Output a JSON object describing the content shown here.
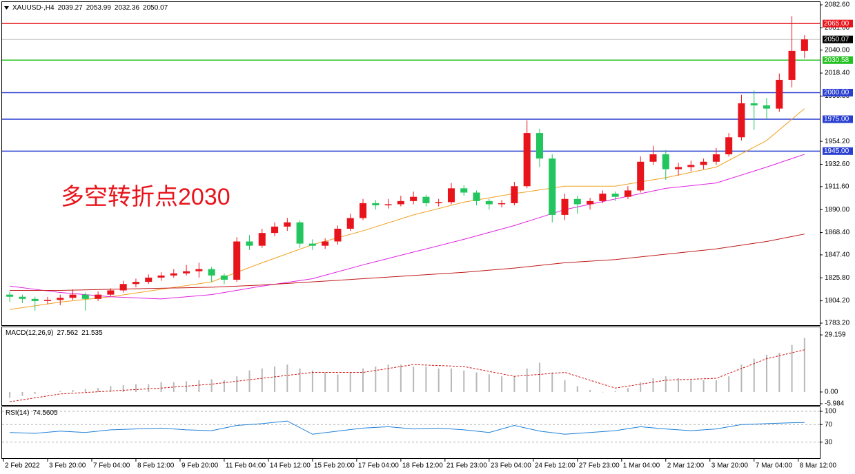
{
  "chart_data": [
    {
      "type": "candlestick",
      "title": "XAUUSD-,H4",
      "annotation": "多空转折点2030",
      "up_color": "#e8141c",
      "down_color": "#22c55e",
      "xlim": [
        0,
        64
      ],
      "ylim": [
        1783.2,
        2082.6
      ],
      "yticks": [
        {
          "value": 2082.6,
          "label": "2082.60"
        },
        {
          "value": 2061,
          "label": "2061.00"
        },
        {
          "value": 2040,
          "label": "2040.00"
        },
        {
          "value": 2018.4,
          "label": "2018.40"
        },
        {
          "value": 1996.8,
          "label": "1996.80"
        },
        {
          "value": 1954.2,
          "label": "1954.20"
        },
        {
          "value": 1932.6,
          "label": "1932.60"
        },
        {
          "value": 1911.6,
          "label": "1911.60"
        },
        {
          "value": 1890,
          "label": "1890.00"
        },
        {
          "value": 1868.4,
          "label": "1868.40"
        },
        {
          "value": 1847.4,
          "label": "1847.40"
        },
        {
          "value": 1825.8,
          "label": "1825.80"
        },
        {
          "value": 1804.2,
          "label": "1804.20"
        },
        {
          "value": 1783.2,
          "label": "1783.20"
        }
      ],
      "open": [
        1810,
        1808,
        1806,
        1804,
        1805,
        1807,
        1810,
        1806,
        1810,
        1814,
        1820,
        1822,
        1826,
        1828,
        1830,
        1832,
        1834,
        1828,
        1824,
        1860,
        1856,
        1868,
        1874,
        1878,
        1858,
        1856,
        1860,
        1872,
        1882,
        1896,
        1894,
        1895,
        1898,
        1902,
        1896,
        1897,
        1910,
        1906,
        1898,
        1895,
        1896,
        1912,
        1962,
        1938,
        1885,
        1900,
        1895,
        1898,
        1905,
        1902,
        1908,
        1935,
        1942,
        1928,
        1930,
        1932,
        1935,
        1942,
        1958,
        1990,
        1988,
        1985,
        2012,
        2039.27
      ],
      "high": [
        1813,
        1810,
        1808,
        1808,
        1810,
        1815,
        1812,
        1813,
        1816,
        1823,
        1825,
        1829,
        1831,
        1834,
        1838,
        1840,
        1836,
        1830,
        1864,
        1866,
        1872,
        1878,
        1882,
        1880,
        1862,
        1863,
        1875,
        1886,
        1900,
        1899,
        1900,
        1903,
        1907,
        1904,
        1900,
        1915,
        1913,
        1908,
        1900,
        1899,
        1916,
        1974,
        1966,
        1942,
        1905,
        1903,
        1901,
        1908,
        1907,
        1912,
        1940,
        1950,
        1946,
        1934,
        1936,
        1938,
        1948,
        1962,
        1998,
        2002,
        1995,
        2018,
        2072,
        2053.99
      ],
      "low": [
        1803,
        1802,
        1795,
        1801,
        1800,
        1805,
        1795,
        1804,
        1808,
        1812,
        1817,
        1820,
        1823,
        1826,
        1828,
        1826,
        1822,
        1820,
        1822,
        1852,
        1854,
        1865,
        1870,
        1854,
        1852,
        1853,
        1857,
        1870,
        1880,
        1890,
        1891,
        1893,
        1895,
        1893,
        1893,
        1895,
        1903,
        1894,
        1890,
        1892,
        1894,
        1910,
        1930,
        1878,
        1880,
        1886,
        1890,
        1896,
        1898,
        1900,
        1906,
        1932,
        1918,
        1922,
        1926,
        1928,
        1932,
        1940,
        1955,
        1965,
        1975,
        1982,
        2005,
        2032.36
      ],
      "close": [
        1808,
        1806,
        1804,
        1805,
        1807,
        1810,
        1806,
        1810,
        1814,
        1820,
        1822,
        1826,
        1828,
        1830,
        1832,
        1834,
        1828,
        1824,
        1860,
        1856,
        1868,
        1874,
        1878,
        1858,
        1856,
        1860,
        1872,
        1882,
        1896,
        1894,
        1895,
        1898,
        1902,
        1896,
        1897,
        1910,
        1906,
        1898,
        1895,
        1896,
        1912,
        1962,
        1938,
        1885,
        1900,
        1895,
        1898,
        1905,
        1902,
        1908,
        1935,
        1942,
        1928,
        1930,
        1932,
        1935,
        1942,
        1958,
        1990,
        1988,
        1985,
        2012,
        2039.27,
        2050.07
      ],
      "ma_lines": [
        {
          "color": "#f0a020",
          "x": [
            0,
            4,
            8,
            12,
            16,
            20,
            24,
            28,
            32,
            36,
            40,
            44,
            48,
            52,
            56,
            60,
            63
          ],
          "values": [
            1796,
            1803,
            1808,
            1815,
            1822,
            1840,
            1857,
            1870,
            1885,
            1897,
            1905,
            1912,
            1912,
            1920,
            1930,
            1955,
            1985
          ]
        },
        {
          "color": "#e020e0",
          "x": [
            0,
            4,
            8,
            12,
            16,
            20,
            24,
            28,
            32,
            36,
            40,
            44,
            48,
            52,
            56,
            60,
            63
          ],
          "values": [
            1818,
            1812,
            1808,
            1806,
            1810,
            1818,
            1825,
            1838,
            1850,
            1862,
            1875,
            1890,
            1900,
            1910,
            1915,
            1930,
            1942
          ]
        },
        {
          "color": "#c01818",
          "x": [
            0,
            4,
            8,
            12,
            16,
            20,
            24,
            28,
            32,
            36,
            40,
            44,
            48,
            52,
            56,
            60,
            63
          ],
          "values": [
            1814,
            1814,
            1815,
            1816,
            1817,
            1819,
            1822,
            1825,
            1828,
            1831,
            1835,
            1840,
            1843,
            1848,
            1853,
            1860,
            1867
          ]
        }
      ],
      "levels": [
        {
          "value": 2065,
          "label": "2065.00",
          "color": "#e8141c"
        },
        {
          "value": 2030.58,
          "label": "2030.58",
          "color": "#22c020"
        },
        {
          "value": 2000,
          "label": "2000.00",
          "color": "#2a3fd0"
        },
        {
          "value": 1975,
          "label": "1975.00",
          "color": "#2a3fd0"
        },
        {
          "value": 1945,
          "label": "1945.00",
          "color": "#2a3fd0"
        }
      ]
    },
    {
      "type": "macd",
      "title": "MACD(12,26,9)",
      "xlim": [
        0,
        64
      ],
      "ylim": [
        -6.7,
        31.3
      ],
      "yticks": [
        29.159,
        {
          "value": 0,
          "label": "0.00"
        },
        -5.984
      ],
      "histogram": {
        "color": "#b8b8b8",
        "values": [
          -3,
          -2,
          -1,
          0,
          0.5,
          1,
          1.5,
          2,
          3,
          3.5,
          4,
          4,
          5,
          5,
          5.5,
          6,
          6.5,
          6,
          8,
          11,
          12,
          13,
          14,
          12,
          11,
          10,
          9,
          10,
          12,
          13,
          14,
          14,
          13,
          13,
          12,
          12,
          11,
          10,
          9,
          8,
          8,
          12,
          15,
          10,
          6,
          3,
          1,
          0,
          0.5,
          2,
          5,
          7,
          8,
          7,
          6,
          6,
          6,
          8,
          14,
          17,
          19,
          20,
          24,
          27.562
        ]
      },
      "signal": {
        "color": "#d01010",
        "x": [
          0,
          4,
          8,
          12,
          16,
          20,
          24,
          28,
          32,
          36,
          40,
          44,
          48,
          52,
          56,
          60,
          63
        ],
        "values": [
          -5,
          -1,
          0.5,
          2,
          4,
          7,
          10,
          10,
          14,
          13,
          8,
          10,
          2,
          6,
          7,
          17,
          21.535
        ]
      }
    },
    {
      "type": "line",
      "title": "RSI(14)",
      "xlim": [
        0,
        64
      ],
      "ylim": [
        0,
        100
      ],
      "yticks": [
        100,
        70,
        30
      ],
      "color": "#1e7fd8",
      "x": [
        0,
        2,
        4,
        6,
        8,
        10,
        12,
        14,
        16,
        18,
        20,
        22,
        24,
        26,
        28,
        30,
        32,
        34,
        36,
        38,
        40,
        42,
        44,
        46,
        48,
        50,
        52,
        54,
        56,
        58,
        60,
        62,
        63
      ],
      "values": [
        52,
        50,
        55,
        52,
        58,
        60,
        62,
        58,
        56,
        68,
        72,
        78,
        48,
        55,
        62,
        65,
        60,
        62,
        58,
        52,
        68,
        55,
        48,
        52,
        56,
        65,
        60,
        56,
        60,
        70,
        72,
        74,
        74.5605
      ],
      "xticks": [
        {
          "value": 0,
          "label": "2 Feb 2022"
        },
        {
          "value": 3.5,
          "label": "3 Feb 20:00"
        },
        {
          "value": 7,
          "label": "7 Feb 04:00"
        },
        {
          "value": 10.5,
          "label": "8 Feb 12:00"
        },
        {
          "value": 14,
          "label": "9 Feb 20:00"
        },
        {
          "value": 17.5,
          "label": "11 Feb 04:00"
        },
        {
          "value": 21,
          "label": "14 Feb 12:00"
        },
        {
          "value": 24.5,
          "label": "15 Feb 20:00"
        },
        {
          "value": 28,
          "label": "17 Feb 04:00"
        },
        {
          "value": 31.5,
          "label": "18 Feb 12:00"
        },
        {
          "value": 35,
          "label": "21 Feb 23:00"
        },
        {
          "value": 38.5,
          "label": "23 Feb 04:00"
        },
        {
          "value": 42,
          "label": "24 Feb 12:00"
        },
        {
          "value": 45.5,
          "label": "27 Feb 23:00"
        },
        {
          "value": 49,
          "label": "1 Mar 04:00"
        },
        {
          "value": 52.5,
          "label": "2 Mar 12:00"
        },
        {
          "value": 56,
          "label": "3 Mar 20:00"
        },
        {
          "value": 59.5,
          "label": "7 Mar 04:00"
        },
        {
          "value": 63,
          "label": "8 Mar 12:00"
        }
      ]
    }
  ]
}
